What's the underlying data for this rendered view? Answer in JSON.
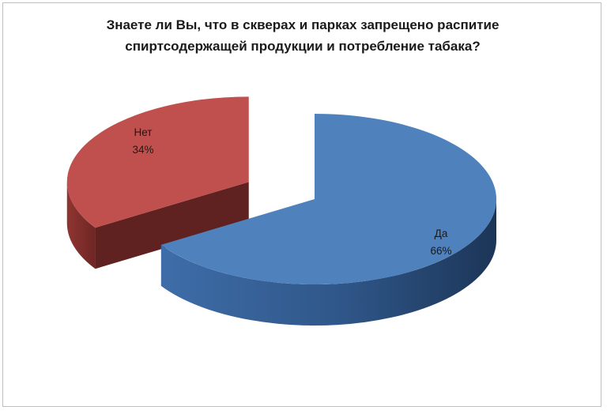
{
  "chart_data": {
    "type": "pie",
    "title_lines": [
      "Знаете ли Вы, что в скверах и парках запрещено распитие",
      "спиртсодержащей продукции и потребление табака?"
    ],
    "categories": [
      "Да",
      "Нет"
    ],
    "values": [
      66,
      34
    ],
    "data_labels": [
      "66%",
      "34%"
    ],
    "colors": [
      "#4f81bd",
      "#c0504d"
    ],
    "three_d": true,
    "exploded": true,
    "legend": "none"
  }
}
